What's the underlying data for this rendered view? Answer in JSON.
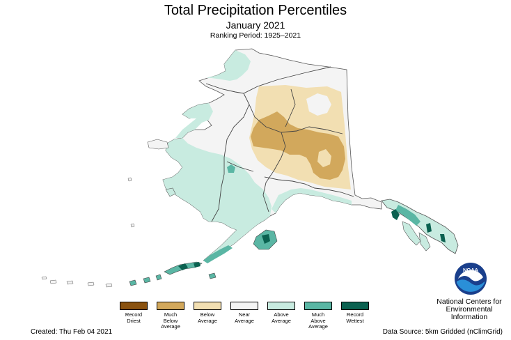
{
  "title": "Total Precipitation Percentiles",
  "subtitle": "January 2021",
  "ranking_period": "Ranking Period: 1925–2021",
  "legend": [
    {
      "label": [
        "Record",
        "Driest"
      ],
      "color": "#8a5210"
    },
    {
      "label": [
        "Much",
        "Below",
        "Average"
      ],
      "color": "#d2a85c"
    },
    {
      "label": [
        "Below",
        "Average"
      ],
      "color": "#f2dfb2"
    },
    {
      "label": [
        "Near",
        "Average"
      ],
      "color": "#f4f4f4"
    },
    {
      "label": [
        "Above",
        "Average"
      ],
      "color": "#c8ebe0"
    },
    {
      "label": [
        "Much",
        "Above",
        "Average"
      ],
      "color": "#5ab6a4"
    },
    {
      "label": [
        "Record",
        "Wettest"
      ],
      "color": "#0b6150"
    }
  ],
  "footer": {
    "created": "Created: Thu Feb 04 2021",
    "source": "Data Source: 5km Gridded (nClimGrid)"
  },
  "agency": {
    "logo_text": "NOAA",
    "lines": [
      "National Centers for",
      "Environmental",
      "Information"
    ]
  },
  "map_regions": {
    "far_north_slope": "near",
    "northwest_coast": "above",
    "interior_north": "below",
    "interior_core": "much_below",
    "west_coast": "above",
    "southwest": "above",
    "south_central": "above",
    "panhandle": "above",
    "aleutians": "much_above"
  }
}
